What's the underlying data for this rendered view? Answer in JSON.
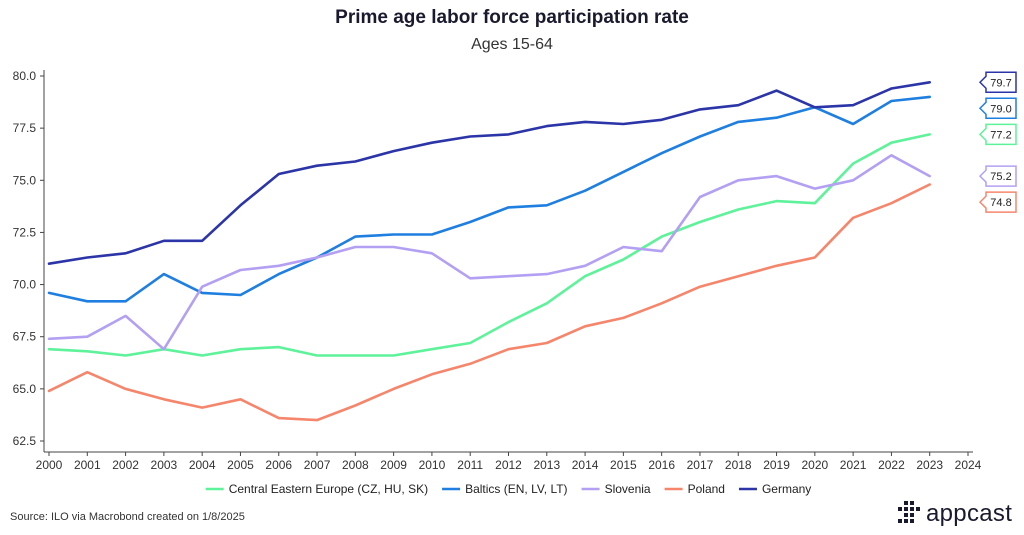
{
  "chart_data": {
    "type": "line",
    "title": "Prime age labor force participation rate",
    "subtitle": "Ages 15-64",
    "x": [
      2000,
      2001,
      2002,
      2003,
      2004,
      2005,
      2006,
      2007,
      2008,
      2009,
      2010,
      2011,
      2012,
      2013,
      2014,
      2015,
      2016,
      2017,
      2018,
      2019,
      2020,
      2021,
      2022,
      2023
    ],
    "x_ticks": [
      "2000",
      "2001",
      "2002",
      "2003",
      "2004",
      "2005",
      "2006",
      "2007",
      "2008",
      "2009",
      "2010",
      "2011",
      "2012",
      "2013",
      "2014",
      "2015",
      "2016",
      "2017",
      "2018",
      "2019",
      "2020",
      "2021",
      "2022",
      "2023",
      "2024"
    ],
    "xlim": [
      2000,
      2024
    ],
    "ylim": [
      62.5,
      80.0
    ],
    "y_ticks": [
      "62.5",
      "65.0",
      "67.5",
      "70.0",
      "72.5",
      "75.0",
      "77.5",
      "80.0"
    ],
    "grid": false,
    "legend_position": "bottom",
    "series": [
      {
        "name": "Central Eastern Europe (CZ, HU, SK)",
        "color": "#5ef29a",
        "end_label": "77.2",
        "values": [
          66.9,
          66.8,
          66.6,
          66.9,
          66.6,
          66.9,
          67.0,
          66.6,
          66.6,
          66.6,
          66.9,
          67.2,
          68.2,
          69.1,
          70.4,
          71.2,
          72.3,
          73.0,
          73.6,
          74.0,
          73.9,
          75.8,
          76.8,
          77.2
        ]
      },
      {
        "name": "Baltics (EN, LV, LT)",
        "color": "#1e7fe0",
        "end_label": "79.0",
        "values": [
          69.6,
          69.2,
          69.2,
          70.5,
          69.6,
          69.5,
          70.5,
          71.3,
          72.3,
          72.4,
          72.4,
          73.0,
          73.7,
          73.8,
          74.5,
          75.4,
          76.3,
          77.1,
          77.8,
          78.0,
          78.5,
          77.7,
          78.8,
          79.0
        ]
      },
      {
        "name": "Slovenia",
        "color": "#b3a0f2",
        "end_label": "75.2",
        "values": [
          67.4,
          67.5,
          68.5,
          66.9,
          69.9,
          70.7,
          70.9,
          71.3,
          71.8,
          71.8,
          71.5,
          70.3,
          70.4,
          70.5,
          70.9,
          71.8,
          71.6,
          74.2,
          75.0,
          75.2,
          74.6,
          75.0,
          76.2,
          75.2
        ]
      },
      {
        "name": "Poland",
        "color": "#f5866c",
        "end_label": "74.8",
        "values": [
          64.9,
          65.8,
          65.0,
          64.5,
          64.1,
          64.5,
          63.6,
          63.5,
          64.2,
          65.0,
          65.7,
          66.2,
          66.9,
          67.2,
          68.0,
          68.4,
          69.1,
          69.9,
          70.4,
          70.9,
          71.3,
          73.2,
          73.9,
          74.8
        ]
      },
      {
        "name": "Germany",
        "color": "#2b35a8",
        "end_label": "79.7",
        "values": [
          71.0,
          71.3,
          71.5,
          72.1,
          72.1,
          73.8,
          75.3,
          75.7,
          75.9,
          76.4,
          76.8,
          77.1,
          77.2,
          77.6,
          77.8,
          77.7,
          77.9,
          78.4,
          78.6,
          79.3,
          78.5,
          78.6,
          79.4,
          79.7
        ]
      }
    ]
  },
  "footer": {
    "source": "Source: ILO via Macrobond created on 1/8/2025",
    "logo_text": "appcast"
  }
}
